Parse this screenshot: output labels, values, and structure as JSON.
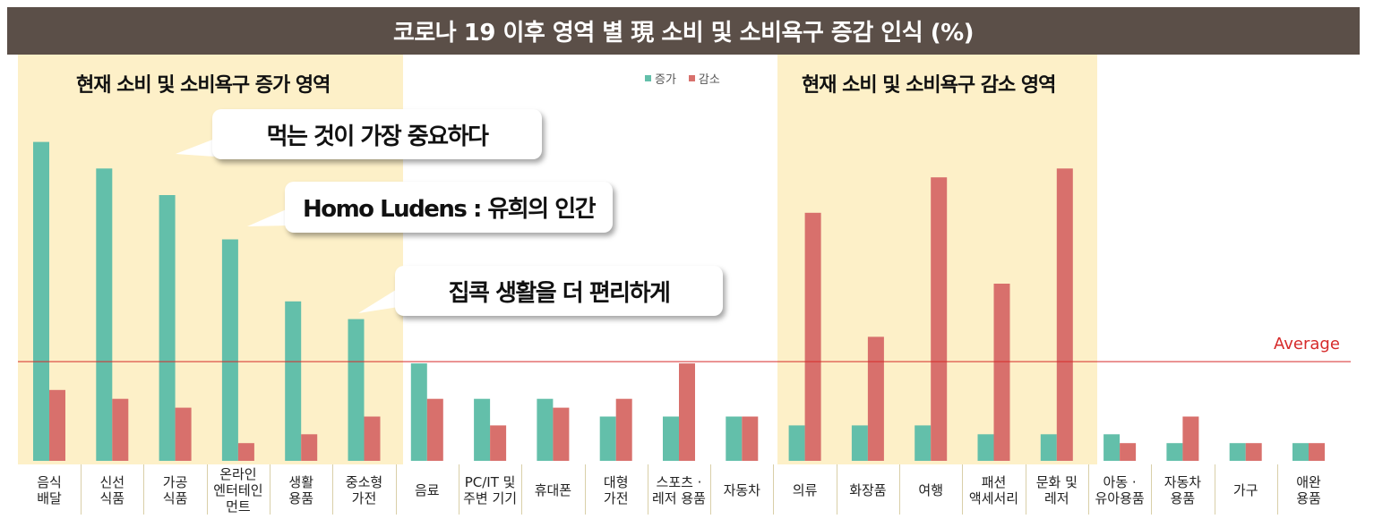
{
  "title": "코로나 19 이후 영역 별 現 소비 및 소비욕구 증감 인식 (%)",
  "zones": {
    "increase_title": "현재 소비 및 소비욕구 증가 영역",
    "decrease_title": "현재 소비 및 소비욕구 감소 영역"
  },
  "callouts": [
    "먹는 것이 가장 중요하다",
    "Homo Ludens : 유희의 인간",
    "집콕 생활을 더 편리하게"
  ],
  "chart_data": {
    "type": "bar",
    "title": "코로나 19 이후 영역 별 現 소비 및 소비욕구 증감 인식 (%)",
    "categories": [
      "음식\n배달",
      "신선\n식품",
      "가공\n식품",
      "온라인\n엔터테인\n먼트",
      "생활\n용품",
      "중소형\n가전",
      "음료",
      "PC/IT 및\n주변 기기",
      "휴대폰",
      "대형\n가전",
      "스포츠 ·\n레저 용품",
      "자동차",
      "의류",
      "화장품",
      "여행",
      "패션\n액세서리",
      "문화 및\n레저",
      "아동 ·\n유아용품",
      "자동차\n용품",
      "가구",
      "애완\n용품"
    ],
    "series": [
      {
        "name": "증가",
        "color": "#63bfaa",
        "values": [
          36,
          33,
          30,
          25,
          18,
          16,
          11,
          7,
          7,
          5,
          5,
          5,
          4,
          4,
          4,
          3,
          3,
          3,
          2,
          2,
          2
        ]
      },
      {
        "name": "감소",
        "color": "#d8706c",
        "values": [
          8,
          7,
          6,
          2,
          3,
          5,
          7,
          4,
          6,
          7,
          11,
          5,
          28,
          14,
          32,
          20,
          33,
          2,
          5,
          2,
          2
        ]
      }
    ],
    "average": {
      "label": "Average",
      "value": 11.2
    },
    "ylim": [
      0,
      40
    ],
    "legend": "top-center",
    "highlight_ranges": [
      [
        0,
        5
      ],
      [
        12,
        16
      ]
    ]
  }
}
